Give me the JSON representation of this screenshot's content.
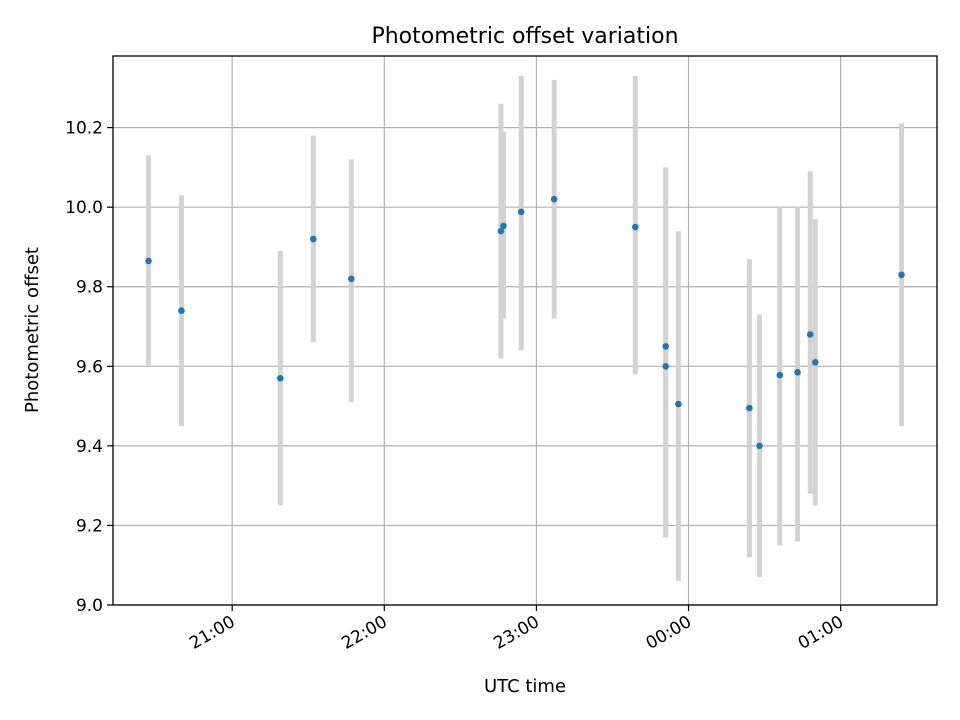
{
  "chart_data": {
    "type": "scatter",
    "title": "Photometric offset variation",
    "xlabel": "UTC time",
    "ylabel": "Photometric offset",
    "x_ticks": [
      "21:00",
      "22:00",
      "23:00",
      "00:00",
      "01:00"
    ],
    "y_ticks": [
      "9.0",
      "9.2",
      "9.4",
      "9.6",
      "9.8",
      "10.0",
      "10.2"
    ],
    "xlim": [
      "20:13",
      "01:38"
    ],
    "ylim": [
      9.0,
      10.38
    ],
    "grid": true,
    "error_bar_color": "#d3d3d3",
    "marker_color": "#1f77b4",
    "points": [
      {
        "t": "20:27",
        "y": 9.865,
        "lo": 9.6,
        "hi": 10.13
      },
      {
        "t": "20:40",
        "y": 9.74,
        "lo": 9.45,
        "hi": 10.03
      },
      {
        "t": "21:19",
        "y": 9.57,
        "lo": 9.25,
        "hi": 9.89
      },
      {
        "t": "21:32",
        "y": 9.92,
        "lo": 9.66,
        "hi": 10.18
      },
      {
        "t": "21:47",
        "y": 9.82,
        "lo": 9.51,
        "hi": 10.12
      },
      {
        "t": "22:46",
        "y": 9.94,
        "lo": 9.62,
        "hi": 10.26
      },
      {
        "t": "22:47",
        "y": 9.953,
        "lo": 9.72,
        "hi": 10.19
      },
      {
        "t": "22:54",
        "y": 9.988,
        "lo": 9.64,
        "hi": 10.33
      },
      {
        "t": "23:07",
        "y": 10.02,
        "lo": 9.72,
        "hi": 10.32
      },
      {
        "t": "23:39",
        "y": 9.95,
        "lo": 9.58,
        "hi": 10.33
      },
      {
        "t": "23:51",
        "y": 9.65,
        "lo": 9.17,
        "hi": 10.1
      },
      {
        "t": "23:51",
        "y": 9.6,
        "lo": 9.17,
        "hi": 10.1
      },
      {
        "t": "23:56",
        "y": 9.505,
        "lo": 9.06,
        "hi": 9.94
      },
      {
        "t": "00:24",
        "y": 9.495,
        "lo": 9.12,
        "hi": 9.87
      },
      {
        "t": "00:28",
        "y": 9.4,
        "lo": 9.07,
        "hi": 9.73
      },
      {
        "t": "00:36",
        "y": 9.578,
        "lo": 9.15,
        "hi": 10.0
      },
      {
        "t": "00:43",
        "y": 9.585,
        "lo": 9.16,
        "hi": 10.0
      },
      {
        "t": "00:48",
        "y": 9.68,
        "lo": 9.28,
        "hi": 10.09
      },
      {
        "t": "00:50",
        "y": 9.61,
        "lo": 9.25,
        "hi": 9.97
      },
      {
        "t": "01:24",
        "y": 9.83,
        "lo": 9.45,
        "hi": 10.21
      }
    ]
  }
}
